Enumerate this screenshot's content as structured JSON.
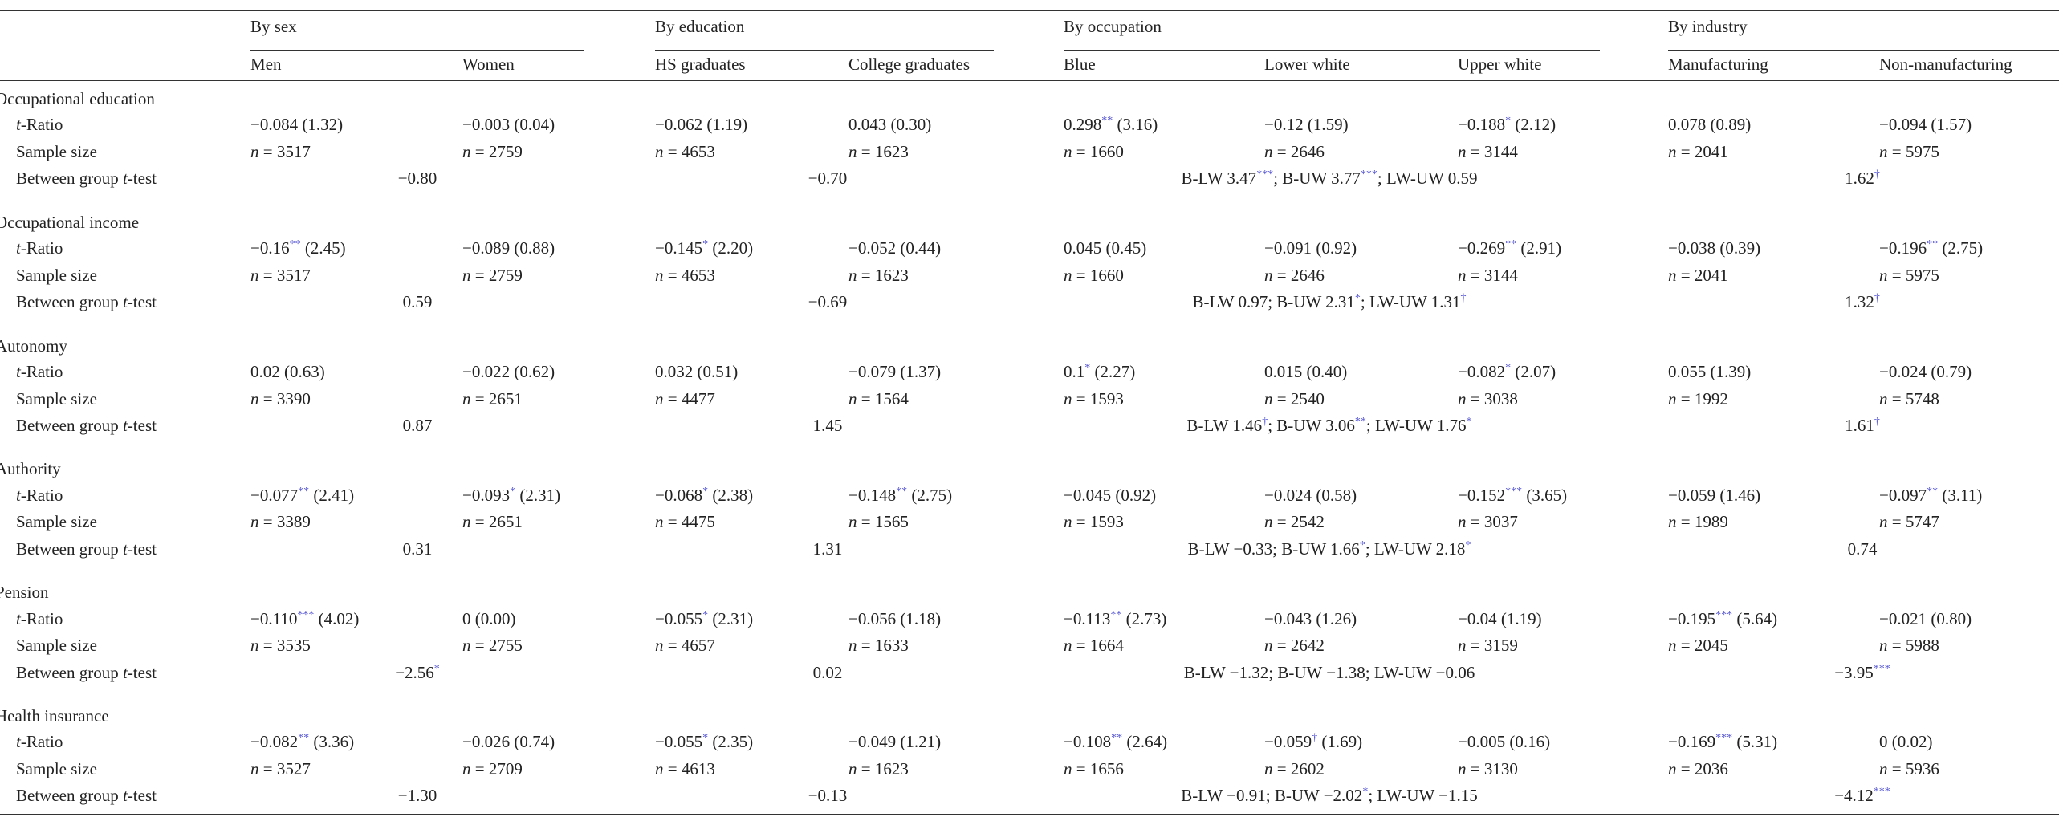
{
  "table": {
    "groups": [
      {
        "label": "By sex",
        "columns": [
          "Men",
          "Women"
        ]
      },
      {
        "label": "By education",
        "columns": [
          "HS graduates",
          "College graduates"
        ]
      },
      {
        "label": "By occupation",
        "columns": [
          "Blue",
          "Lower white",
          "Upper white"
        ]
      },
      {
        "label": "By industry",
        "columns": [
          "Manufacturing",
          "Non-manufacturing"
        ]
      }
    ],
    "sections": [
      {
        "label": "Occupational education",
        "rows": [
          {
            "label": [
              {
                "it": "t"
              },
              "-Ratio"
            ],
            "cells": [
              [
                "−0.084 (1.32)"
              ],
              [
                "−0.003 (0.04)"
              ],
              [
                "−0.062 (1.19)"
              ],
              [
                "0.043 (0.30)"
              ],
              [
                "0.298",
                {
                  "sup": "**"
                },
                " (3.16)"
              ],
              [
                "−0.12 (1.59)"
              ],
              [
                "−0.188",
                {
                  "sup": "*"
                },
                " (2.12)"
              ],
              [
                "0.078 (0.89)"
              ],
              [
                "−0.094 (1.57)"
              ]
            ]
          },
          {
            "label": [
              "Sample size"
            ],
            "cells": [
              [
                {
                  "it": "n"
                },
                " = 3517"
              ],
              [
                {
                  "it": "n"
                },
                " = 2759"
              ],
              [
                {
                  "it": "n"
                },
                " = 4653"
              ],
              [
                {
                  "it": "n"
                },
                " = 1623"
              ],
              [
                {
                  "it": "n"
                },
                " = 1660"
              ],
              [
                {
                  "it": "n"
                },
                " = 2646"
              ],
              [
                {
                  "it": "n"
                },
                " = 3144"
              ],
              [
                {
                  "it": "n"
                },
                " = 2041"
              ],
              [
                {
                  "it": "n"
                },
                " = 5975"
              ]
            ]
          },
          {
            "label": [
              "Between group ",
              {
                "it": "t"
              },
              "-test"
            ],
            "cells": [
              [
                "−0.80"
              ],
              [
                "−0.70"
              ],
              [
                "B-LW 3.47",
                {
                  "sup": "***"
                },
                "; B-UW 3.77",
                {
                  "sup": "***"
                },
                "; LW-UW 0.59"
              ],
              [
                "1.62",
                {
                  "sup": "†"
                }
              ]
            ]
          }
        ]
      },
      {
        "label": "Occupational income",
        "rows": [
          {
            "label": [
              {
                "it": "t"
              },
              "-Ratio"
            ],
            "cells": [
              [
                "−0.16",
                {
                  "sup": "**"
                },
                " (2.45)"
              ],
              [
                "−0.089 (0.88)"
              ],
              [
                "−0.145",
                {
                  "sup": "*"
                },
                " (2.20)"
              ],
              [
                "−0.052 (0.44)"
              ],
              [
                "0.045 (0.45)"
              ],
              [
                "−0.091 (0.92)"
              ],
              [
                "−0.269",
                {
                  "sup": "**"
                },
                " (2.91)"
              ],
              [
                "−0.038 (0.39)"
              ],
              [
                "−0.196",
                {
                  "sup": "**"
                },
                " (2.75)"
              ]
            ]
          },
          {
            "label": [
              "Sample size"
            ],
            "cells": [
              [
                {
                  "it": "n"
                },
                " = 3517"
              ],
              [
                {
                  "it": "n"
                },
                " = 2759"
              ],
              [
                {
                  "it": "n"
                },
                " = 4653"
              ],
              [
                {
                  "it": "n"
                },
                " = 1623"
              ],
              [
                {
                  "it": "n"
                },
                " = 1660"
              ],
              [
                {
                  "it": "n"
                },
                " = 2646"
              ],
              [
                {
                  "it": "n"
                },
                " = 3144"
              ],
              [
                {
                  "it": "n"
                },
                " = 2041"
              ],
              [
                {
                  "it": "n"
                },
                " = 5975"
              ]
            ]
          },
          {
            "label": [
              "Between group ",
              {
                "it": "t"
              },
              "-test"
            ],
            "cells": [
              [
                "0.59"
              ],
              [
                "−0.69"
              ],
              [
                "B-LW 0.97; B-UW 2.31",
                {
                  "sup": "*"
                },
                "; LW-UW 1.31",
                {
                  "sup": "†"
                }
              ],
              [
                "1.32",
                {
                  "sup": "†"
                }
              ]
            ]
          }
        ]
      },
      {
        "label": "Autonomy",
        "rows": [
          {
            "label": [
              {
                "it": "t"
              },
              "-Ratio"
            ],
            "cells": [
              [
                "0.02 (0.63)"
              ],
              [
                "−0.022 (0.62)"
              ],
              [
                "0.032 (0.51)"
              ],
              [
                "−0.079 (1.37)"
              ],
              [
                "0.1",
                {
                  "sup": "*"
                },
                " (2.27)"
              ],
              [
                "0.015 (0.40)"
              ],
              [
                "−0.082",
                {
                  "sup": "*"
                },
                " (2.07)"
              ],
              [
                "0.055 (1.39)"
              ],
              [
                "−0.024 (0.79)"
              ]
            ]
          },
          {
            "label": [
              "Sample size"
            ],
            "cells": [
              [
                {
                  "it": "n"
                },
                " = 3390"
              ],
              [
                {
                  "it": "n"
                },
                " = 2651"
              ],
              [
                {
                  "it": "n"
                },
                " = 4477"
              ],
              [
                {
                  "it": "n"
                },
                " = 1564"
              ],
              [
                {
                  "it": "n"
                },
                " = 1593"
              ],
              [
                {
                  "it": "n"
                },
                " = 2540"
              ],
              [
                {
                  "it": "n"
                },
                " = 3038"
              ],
              [
                {
                  "it": "n"
                },
                " = 1992"
              ],
              [
                {
                  "it": "n"
                },
                " = 5748"
              ]
            ]
          },
          {
            "label": [
              "Between group ",
              {
                "it": "t"
              },
              "-test"
            ],
            "cells": [
              [
                "0.87"
              ],
              [
                "1.45"
              ],
              [
                "B-LW 1.46",
                {
                  "sup": "†"
                },
                "; B-UW 3.06",
                {
                  "sup": "**"
                },
                "; LW-UW 1.76",
                {
                  "sup": "*"
                }
              ],
              [
                "1.61",
                {
                  "sup": "†"
                }
              ]
            ]
          }
        ]
      },
      {
        "label": "Authority",
        "rows": [
          {
            "label": [
              {
                "it": "t"
              },
              "-Ratio"
            ],
            "cells": [
              [
                "−0.077",
                {
                  "sup": "**"
                },
                " (2.41)"
              ],
              [
                "−0.093",
                {
                  "sup": "*"
                },
                " (2.31)"
              ],
              [
                "−0.068",
                {
                  "sup": "*"
                },
                " (2.38)"
              ],
              [
                "−0.148",
                {
                  "sup": "**"
                },
                " (2.75)"
              ],
              [
                "−0.045 (0.92)"
              ],
              [
                "−0.024 (0.58)"
              ],
              [
                "−0.152",
                {
                  "sup": "***"
                },
                " (3.65)"
              ],
              [
                "−0.059 (1.46)"
              ],
              [
                "−0.097",
                {
                  "sup": "**"
                },
                " (3.11)"
              ]
            ]
          },
          {
            "label": [
              "Sample size"
            ],
            "cells": [
              [
                {
                  "it": "n"
                },
                " = 3389"
              ],
              [
                {
                  "it": "n"
                },
                " = 2651"
              ],
              [
                {
                  "it": "n"
                },
                " = 4475"
              ],
              [
                {
                  "it": "n"
                },
                " = 1565"
              ],
              [
                {
                  "it": "n"
                },
                " = 1593"
              ],
              [
                {
                  "it": "n"
                },
                " = 2542"
              ],
              [
                {
                  "it": "n"
                },
                " = 3037"
              ],
              [
                {
                  "it": "n"
                },
                " = 1989"
              ],
              [
                {
                  "it": "n"
                },
                " = 5747"
              ]
            ]
          },
          {
            "label": [
              "Between group ",
              {
                "it": "t"
              },
              "-test"
            ],
            "cells": [
              [
                "0.31"
              ],
              [
                "1.31"
              ],
              [
                "B-LW −0.33; B-UW 1.66",
                {
                  "sup": "*"
                },
                "; LW-UW 2.18",
                {
                  "sup": "*"
                }
              ],
              [
                "0.74"
              ]
            ]
          }
        ]
      },
      {
        "label": "Pension",
        "rows": [
          {
            "label": [
              {
                "it": "t"
              },
              "-Ratio"
            ],
            "cells": [
              [
                "−0.110",
                {
                  "sup": "***"
                },
                " (4.02)"
              ],
              [
                "0 (0.00)"
              ],
              [
                "−0.055",
                {
                  "sup": "*"
                },
                " (2.31)"
              ],
              [
                "−0.056 (1.18)"
              ],
              [
                "−0.113",
                {
                  "sup": "**"
                },
                " (2.73)"
              ],
              [
                "−0.043 (1.26)"
              ],
              [
                "−0.04 (1.19)"
              ],
              [
                "−0.195",
                {
                  "sup": "***"
                },
                " (5.64)"
              ],
              [
                "−0.021 (0.80)"
              ]
            ]
          },
          {
            "label": [
              "Sample size"
            ],
            "cells": [
              [
                {
                  "it": "n"
                },
                " = 3535"
              ],
              [
                {
                  "it": "n"
                },
                " = 2755"
              ],
              [
                {
                  "it": "n"
                },
                " = 4657"
              ],
              [
                {
                  "it": "n"
                },
                " = 1633"
              ],
              [
                {
                  "it": "n"
                },
                " = 1664"
              ],
              [
                {
                  "it": "n"
                },
                " = 2642"
              ],
              [
                {
                  "it": "n"
                },
                " = 3159"
              ],
              [
                {
                  "it": "n"
                },
                " = 2045"
              ],
              [
                {
                  "it": "n"
                },
                " = 5988"
              ]
            ]
          },
          {
            "label": [
              "Between group ",
              {
                "it": "t"
              },
              "-test"
            ],
            "cells": [
              [
                "−2.56",
                {
                  "sup": "*"
                }
              ],
              [
                "0.02"
              ],
              [
                "B-LW −1.32; B-UW −1.38; LW-UW −0.06"
              ],
              [
                "−3.95",
                {
                  "sup": "***"
                }
              ]
            ]
          }
        ]
      },
      {
        "label": "Health insurance",
        "rows": [
          {
            "label": [
              {
                "it": "t"
              },
              "-Ratio"
            ],
            "cells": [
              [
                "−0.082",
                {
                  "sup": "**"
                },
                " (3.36)"
              ],
              [
                "−0.026 (0.74)"
              ],
              [
                "−0.055",
                {
                  "sup": "*"
                },
                " (2.35)"
              ],
              [
                "−0.049 (1.21)"
              ],
              [
                "−0.108",
                {
                  "sup": "**"
                },
                " (2.64)"
              ],
              [
                "−0.059",
                {
                  "sup": "†"
                },
                " (1.69)"
              ],
              [
                "−0.005 (0.16)"
              ],
              [
                "−0.169",
                {
                  "sup": "***"
                },
                " (5.31)"
              ],
              [
                "0 (0.02)"
              ]
            ]
          },
          {
            "label": [
              "Sample size"
            ],
            "cells": [
              [
                {
                  "it": "n"
                },
                " = 3527"
              ],
              [
                {
                  "it": "n"
                },
                " = 2709"
              ],
              [
                {
                  "it": "n"
                },
                " = 4613"
              ],
              [
                {
                  "it": "n"
                },
                " = 1623"
              ],
              [
                {
                  "it": "n"
                },
                " = 1656"
              ],
              [
                {
                  "it": "n"
                },
                " = 2602"
              ],
              [
                {
                  "it": "n"
                },
                " = 3130"
              ],
              [
                {
                  "it": "n"
                },
                " = 2036"
              ],
              [
                {
                  "it": "n"
                },
                " = 5936"
              ]
            ]
          },
          {
            "label": [
              "Between group ",
              {
                "it": "t"
              },
              "-test"
            ],
            "cells": [
              [
                "−1.30"
              ],
              [
                "−0.13"
              ],
              [
                "B-LW −0.91; B-UW −2.02",
                {
                  "sup": "*"
                },
                "; LW-UW −1.15"
              ],
              [
                "−4.12",
                {
                  "sup": "***"
                }
              ]
            ]
          }
        ]
      }
    ]
  }
}
